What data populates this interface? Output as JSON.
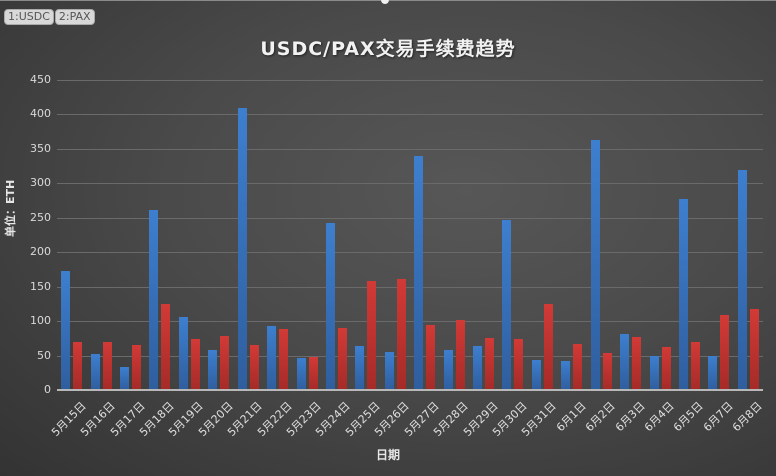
{
  "tabs": [
    {
      "label": "1:USDC"
    },
    {
      "label": "2:PAX"
    }
  ],
  "colors": {
    "usdc": "#3d7fcf",
    "pax": "#d23a36",
    "background": "#4a4a4a"
  },
  "chart_data": {
    "type": "bar",
    "title": "USDC/PAX交易手续费趋势",
    "xlabel": "日期",
    "ylabel": "单位：ETH",
    "ylim": [
      0,
      450
    ],
    "yticks": [
      0,
      50,
      100,
      150,
      200,
      250,
      300,
      350,
      400,
      450
    ],
    "grid": true,
    "legend": "none",
    "categories": [
      "5月15日",
      "5月16日",
      "5月17日",
      "5月18日",
      "5月19日",
      "5月20日",
      "5月21日",
      "5月22日",
      "5月23日",
      "5月24日",
      "5月25日",
      "5月26日",
      "5月27日",
      "5月28日",
      "5月29日",
      "5月30日",
      "5月31日",
      "6月1日",
      "6月2日",
      "6月3日",
      "6月4日",
      "6月5日",
      "6月7日",
      "6月8日"
    ],
    "series": [
      {
        "name": "USDC",
        "color": "#3d7fcf",
        "values": [
          173,
          52,
          33,
          261,
          106,
          58,
          409,
          93,
          46,
          242,
          64,
          55,
          340,
          58,
          64,
          247,
          44,
          42,
          363,
          81,
          49,
          277,
          49,
          319
        ]
      },
      {
        "name": "PAX",
        "color": "#d23a36",
        "values": [
          70,
          70,
          65,
          125,
          74,
          78,
          65,
          88,
          48,
          90,
          158,
          161,
          94,
          101,
          75,
          74,
          125,
          67,
          54,
          77,
          62,
          70,
          109,
          117
        ]
      }
    ]
  }
}
